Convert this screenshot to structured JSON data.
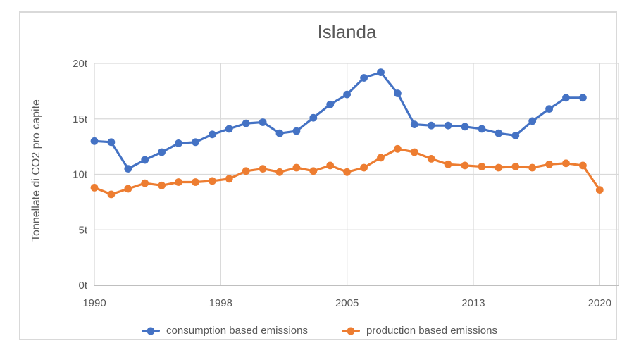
{
  "chart_data": {
    "type": "line",
    "title": "Islanda",
    "ylabel": "Tonnellate di CO2 pro capite",
    "xlim": [
      1990,
      2020
    ],
    "ylim": [
      0,
      20
    ],
    "grid": true,
    "legend_position": "bottom",
    "text_color": "#595959",
    "grid_color": "#D9D9D9",
    "axis_color": "#BFBFBF",
    "y_ticks": [
      {
        "value": 0,
        "label": "0t"
      },
      {
        "value": 5,
        "label": "5t"
      },
      {
        "value": 10,
        "label": "10t"
      },
      {
        "value": 15,
        "label": "15t"
      },
      {
        "value": 20,
        "label": "20t"
      }
    ],
    "x_tick_labels": [
      "1990",
      "1998",
      "2005",
      "2013",
      "2020"
    ],
    "series": [
      {
        "name": "consumption based emissions",
        "color": "#4472C4",
        "marker": "circle",
        "x": [
          1990,
          1991,
          1992,
          1993,
          1994,
          1995,
          1996,
          1997,
          1998,
          1999,
          2000,
          2001,
          2002,
          2003,
          2004,
          2005,
          2006,
          2007,
          2008,
          2009,
          2010,
          2011,
          2012,
          2013,
          2014,
          2015,
          2016,
          2017,
          2018,
          2019
        ],
        "values": [
          13.0,
          12.9,
          10.5,
          11.3,
          12.0,
          12.8,
          12.9,
          13.6,
          14.1,
          14.6,
          14.7,
          13.7,
          13.9,
          15.1,
          16.3,
          17.2,
          18.7,
          19.2,
          17.3,
          14.5,
          14.4,
          14.4,
          14.3,
          14.1,
          13.7,
          13.5,
          14.8,
          15.9,
          16.9,
          16.9
        ]
      },
      {
        "name": "production based emissions",
        "color": "#ED7D31",
        "marker": "circle",
        "x": [
          1990,
          1991,
          1992,
          1993,
          1994,
          1995,
          1996,
          1997,
          1998,
          1999,
          2000,
          2001,
          2002,
          2003,
          2004,
          2005,
          2006,
          2007,
          2008,
          2009,
          2010,
          2011,
          2012,
          2013,
          2014,
          2015,
          2016,
          2017,
          2018,
          2019,
          2020
        ],
        "values": [
          8.8,
          8.2,
          8.7,
          9.2,
          9.0,
          9.3,
          9.3,
          9.4,
          9.6,
          10.3,
          10.5,
          10.2,
          10.6,
          10.3,
          10.8,
          10.2,
          10.6,
          11.5,
          12.3,
          12.0,
          11.4,
          10.9,
          10.8,
          10.7,
          10.6,
          10.7,
          10.6,
          10.9,
          11.0,
          10.8,
          8.6
        ]
      }
    ]
  }
}
